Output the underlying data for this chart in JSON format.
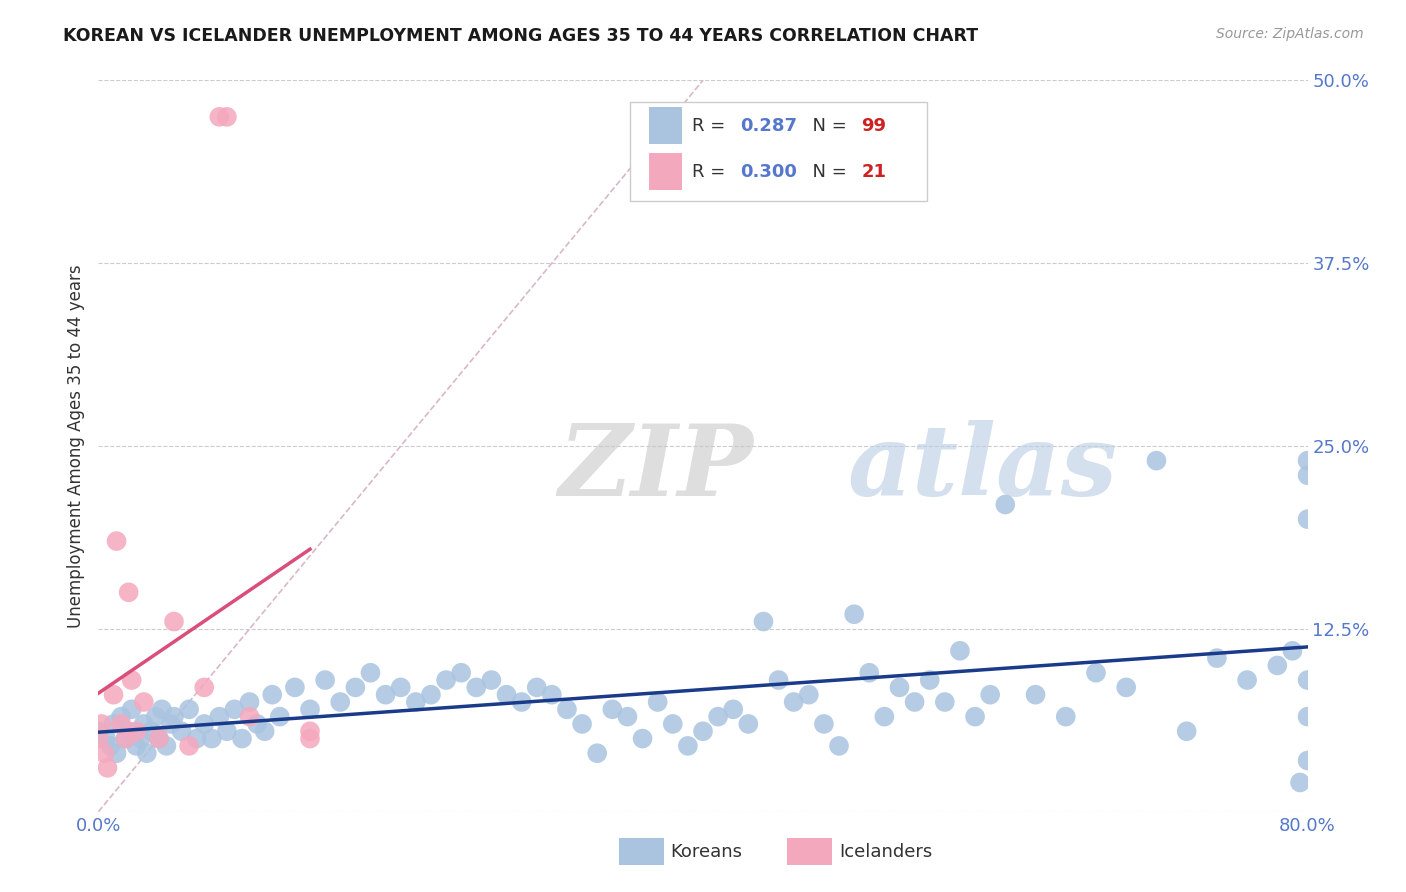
{
  "title": "KOREAN VS ICELANDER UNEMPLOYMENT AMONG AGES 35 TO 44 YEARS CORRELATION CHART",
  "source": "Source: ZipAtlas.com",
  "ylabel": "Unemployment Among Ages 35 to 44 years",
  "xlim": [
    0.0,
    0.8
  ],
  "ylim": [
    0.0,
    0.5
  ],
  "xticks": [
    0.0,
    0.1,
    0.2,
    0.3,
    0.4,
    0.5,
    0.6,
    0.7,
    0.8
  ],
  "xticklabels": [
    "0.0%",
    "",
    "",
    "",
    "",
    "",
    "",
    "",
    "80.0%"
  ],
  "yticks": [
    0.0,
    0.125,
    0.25,
    0.375,
    0.5
  ],
  "yticklabels": [
    "",
    "12.5%",
    "25.0%",
    "37.5%",
    "50.0%"
  ],
  "korean_color": "#aac4e0",
  "icelander_color": "#f4a8be",
  "korean_line_color": "#1a3a8a",
  "icelander_line_color": "#d94f7a",
  "diagonal_color": "#d8b8c8",
  "korean_R": 0.287,
  "korean_N": 99,
  "icelander_R": 0.3,
  "icelander_N": 21,
  "watermark_zip": "ZIP",
  "watermark_atlas": "atlas",
  "background_color": "#ffffff",
  "grid_color": "#cccccc",
  "tick_color": "#5577cc",
  "legend_bottom_labels": [
    "Koreans",
    "Icelanders"
  ],
  "koreans_x": [
    0.0,
    0.005,
    0.008,
    0.01,
    0.012,
    0.015,
    0.018,
    0.02,
    0.022,
    0.025,
    0.028,
    0.03,
    0.032,
    0.035,
    0.038,
    0.04,
    0.042,
    0.045,
    0.048,
    0.05,
    0.055,
    0.06,
    0.065,
    0.07,
    0.075,
    0.08,
    0.085,
    0.09,
    0.095,
    0.1,
    0.105,
    0.11,
    0.115,
    0.12,
    0.13,
    0.14,
    0.15,
    0.16,
    0.17,
    0.18,
    0.19,
    0.2,
    0.21,
    0.22,
    0.23,
    0.24,
    0.25,
    0.26,
    0.27,
    0.28,
    0.29,
    0.3,
    0.31,
    0.32,
    0.33,
    0.34,
    0.35,
    0.36,
    0.37,
    0.38,
    0.39,
    0.4,
    0.41,
    0.42,
    0.43,
    0.44,
    0.45,
    0.46,
    0.47,
    0.48,
    0.49,
    0.5,
    0.51,
    0.52,
    0.53,
    0.54,
    0.55,
    0.56,
    0.57,
    0.58,
    0.59,
    0.6,
    0.62,
    0.64,
    0.66,
    0.68,
    0.7,
    0.72,
    0.74,
    0.76,
    0.78,
    0.79,
    0.795,
    0.8,
    0.8,
    0.8,
    0.8,
    0.8,
    0.8
  ],
  "koreans_y": [
    0.055,
    0.05,
    0.045,
    0.06,
    0.04,
    0.065,
    0.05,
    0.055,
    0.07,
    0.045,
    0.05,
    0.06,
    0.04,
    0.055,
    0.065,
    0.05,
    0.07,
    0.045,
    0.06,
    0.065,
    0.055,
    0.07,
    0.05,
    0.06,
    0.05,
    0.065,
    0.055,
    0.07,
    0.05,
    0.075,
    0.06,
    0.055,
    0.08,
    0.065,
    0.085,
    0.07,
    0.09,
    0.075,
    0.085,
    0.095,
    0.08,
    0.085,
    0.075,
    0.08,
    0.09,
    0.095,
    0.085,
    0.09,
    0.08,
    0.075,
    0.085,
    0.08,
    0.07,
    0.06,
    0.04,
    0.07,
    0.065,
    0.05,
    0.075,
    0.06,
    0.045,
    0.055,
    0.065,
    0.07,
    0.06,
    0.13,
    0.09,
    0.075,
    0.08,
    0.06,
    0.045,
    0.135,
    0.095,
    0.065,
    0.085,
    0.075,
    0.09,
    0.075,
    0.11,
    0.065,
    0.08,
    0.21,
    0.08,
    0.065,
    0.095,
    0.085,
    0.24,
    0.055,
    0.105,
    0.09,
    0.1,
    0.11,
    0.02,
    0.24,
    0.23,
    0.09,
    0.065,
    0.035,
    0.2
  ],
  "icelanders_x": [
    0.0,
    0.002,
    0.004,
    0.006,
    0.01,
    0.012,
    0.015,
    0.018,
    0.02,
    0.022,
    0.025,
    0.03,
    0.04,
    0.05,
    0.06,
    0.07,
    0.08,
    0.085,
    0.1,
    0.14,
    0.14
  ],
  "icelanders_y": [
    0.05,
    0.06,
    0.04,
    0.03,
    0.08,
    0.185,
    0.06,
    0.05,
    0.15,
    0.09,
    0.055,
    0.075,
    0.05,
    0.13,
    0.045,
    0.085,
    0.475,
    0.475,
    0.065,
    0.05,
    0.055
  ]
}
